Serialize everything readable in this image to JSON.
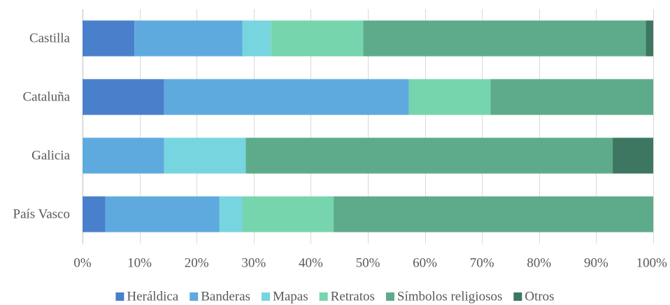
{
  "chart_data": {
    "type": "bar",
    "orientation": "horizontal",
    "stacked": "percent",
    "categories": [
      "Castilla",
      "Cataluña",
      "Galicia",
      "País Vasco"
    ],
    "series": [
      {
        "name": "Heráldica",
        "color": "#4a7fcc",
        "values": [
          9.1,
          14.3,
          0,
          4
        ]
      },
      {
        "name": "Banderas",
        "color": "#5eaade",
        "values": [
          18.9,
          42.9,
          14.3,
          20
        ]
      },
      {
        "name": "Mapas",
        "color": "#77d5e0",
        "values": [
          5.0,
          0,
          14.3,
          4
        ]
      },
      {
        "name": "Retratos",
        "color": "#76d5ad",
        "values": [
          16.2,
          14.3,
          0,
          16
        ]
      },
      {
        "name": "Símbolos religiosos",
        "color": "#5dab8a",
        "values": [
          49.5,
          28.5,
          64.3,
          56
        ]
      },
      {
        "name": "Otros",
        "color": "#3d7762",
        "values": [
          1.3,
          0,
          7.1,
          0
        ]
      }
    ],
    "xlim": [
      0,
      100
    ],
    "x_ticks": [
      "0%",
      "10%",
      "20%",
      "30%",
      "40%",
      "50%",
      "60%",
      "70%",
      "80%",
      "90%",
      "100%"
    ],
    "grid": true,
    "legend": "bottom"
  }
}
